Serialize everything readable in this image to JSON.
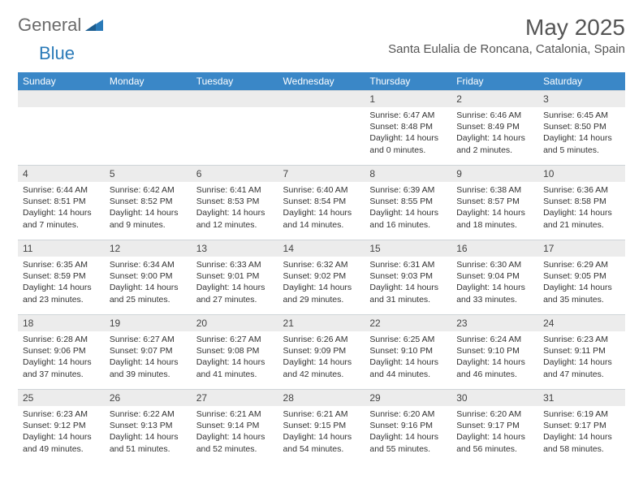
{
  "brand": {
    "part1": "General",
    "part2": "Blue"
  },
  "title": "May 2025",
  "location": "Santa Eulalia de Roncana, Catalonia, Spain",
  "colors": {
    "header_bg": "#3a87c7",
    "header_text": "#ffffff",
    "daynum_bg": "#ececec",
    "border": "#cfd4d8",
    "brand_gray": "#6b6b6b",
    "brand_blue": "#2a7ab8",
    "text": "#333333"
  },
  "weekdays": [
    "Sunday",
    "Monday",
    "Tuesday",
    "Wednesday",
    "Thursday",
    "Friday",
    "Saturday"
  ],
  "weeks": [
    [
      null,
      null,
      null,
      null,
      {
        "n": "1",
        "sr": "Sunrise: 6:47 AM",
        "ss": "Sunset: 8:48 PM",
        "dl": "Daylight: 14 hours and 0 minutes."
      },
      {
        "n": "2",
        "sr": "Sunrise: 6:46 AM",
        "ss": "Sunset: 8:49 PM",
        "dl": "Daylight: 14 hours and 2 minutes."
      },
      {
        "n": "3",
        "sr": "Sunrise: 6:45 AM",
        "ss": "Sunset: 8:50 PM",
        "dl": "Daylight: 14 hours and 5 minutes."
      }
    ],
    [
      {
        "n": "4",
        "sr": "Sunrise: 6:44 AM",
        "ss": "Sunset: 8:51 PM",
        "dl": "Daylight: 14 hours and 7 minutes."
      },
      {
        "n": "5",
        "sr": "Sunrise: 6:42 AM",
        "ss": "Sunset: 8:52 PM",
        "dl": "Daylight: 14 hours and 9 minutes."
      },
      {
        "n": "6",
        "sr": "Sunrise: 6:41 AM",
        "ss": "Sunset: 8:53 PM",
        "dl": "Daylight: 14 hours and 12 minutes."
      },
      {
        "n": "7",
        "sr": "Sunrise: 6:40 AM",
        "ss": "Sunset: 8:54 PM",
        "dl": "Daylight: 14 hours and 14 minutes."
      },
      {
        "n": "8",
        "sr": "Sunrise: 6:39 AM",
        "ss": "Sunset: 8:55 PM",
        "dl": "Daylight: 14 hours and 16 minutes."
      },
      {
        "n": "9",
        "sr": "Sunrise: 6:38 AM",
        "ss": "Sunset: 8:57 PM",
        "dl": "Daylight: 14 hours and 18 minutes."
      },
      {
        "n": "10",
        "sr": "Sunrise: 6:36 AM",
        "ss": "Sunset: 8:58 PM",
        "dl": "Daylight: 14 hours and 21 minutes."
      }
    ],
    [
      {
        "n": "11",
        "sr": "Sunrise: 6:35 AM",
        "ss": "Sunset: 8:59 PM",
        "dl": "Daylight: 14 hours and 23 minutes."
      },
      {
        "n": "12",
        "sr": "Sunrise: 6:34 AM",
        "ss": "Sunset: 9:00 PM",
        "dl": "Daylight: 14 hours and 25 minutes."
      },
      {
        "n": "13",
        "sr": "Sunrise: 6:33 AM",
        "ss": "Sunset: 9:01 PM",
        "dl": "Daylight: 14 hours and 27 minutes."
      },
      {
        "n": "14",
        "sr": "Sunrise: 6:32 AM",
        "ss": "Sunset: 9:02 PM",
        "dl": "Daylight: 14 hours and 29 minutes."
      },
      {
        "n": "15",
        "sr": "Sunrise: 6:31 AM",
        "ss": "Sunset: 9:03 PM",
        "dl": "Daylight: 14 hours and 31 minutes."
      },
      {
        "n": "16",
        "sr": "Sunrise: 6:30 AM",
        "ss": "Sunset: 9:04 PM",
        "dl": "Daylight: 14 hours and 33 minutes."
      },
      {
        "n": "17",
        "sr": "Sunrise: 6:29 AM",
        "ss": "Sunset: 9:05 PM",
        "dl": "Daylight: 14 hours and 35 minutes."
      }
    ],
    [
      {
        "n": "18",
        "sr": "Sunrise: 6:28 AM",
        "ss": "Sunset: 9:06 PM",
        "dl": "Daylight: 14 hours and 37 minutes."
      },
      {
        "n": "19",
        "sr": "Sunrise: 6:27 AM",
        "ss": "Sunset: 9:07 PM",
        "dl": "Daylight: 14 hours and 39 minutes."
      },
      {
        "n": "20",
        "sr": "Sunrise: 6:27 AM",
        "ss": "Sunset: 9:08 PM",
        "dl": "Daylight: 14 hours and 41 minutes."
      },
      {
        "n": "21",
        "sr": "Sunrise: 6:26 AM",
        "ss": "Sunset: 9:09 PM",
        "dl": "Daylight: 14 hours and 42 minutes."
      },
      {
        "n": "22",
        "sr": "Sunrise: 6:25 AM",
        "ss": "Sunset: 9:10 PM",
        "dl": "Daylight: 14 hours and 44 minutes."
      },
      {
        "n": "23",
        "sr": "Sunrise: 6:24 AM",
        "ss": "Sunset: 9:10 PM",
        "dl": "Daylight: 14 hours and 46 minutes."
      },
      {
        "n": "24",
        "sr": "Sunrise: 6:23 AM",
        "ss": "Sunset: 9:11 PM",
        "dl": "Daylight: 14 hours and 47 minutes."
      }
    ],
    [
      {
        "n": "25",
        "sr": "Sunrise: 6:23 AM",
        "ss": "Sunset: 9:12 PM",
        "dl": "Daylight: 14 hours and 49 minutes."
      },
      {
        "n": "26",
        "sr": "Sunrise: 6:22 AM",
        "ss": "Sunset: 9:13 PM",
        "dl": "Daylight: 14 hours and 51 minutes."
      },
      {
        "n": "27",
        "sr": "Sunrise: 6:21 AM",
        "ss": "Sunset: 9:14 PM",
        "dl": "Daylight: 14 hours and 52 minutes."
      },
      {
        "n": "28",
        "sr": "Sunrise: 6:21 AM",
        "ss": "Sunset: 9:15 PM",
        "dl": "Daylight: 14 hours and 54 minutes."
      },
      {
        "n": "29",
        "sr": "Sunrise: 6:20 AM",
        "ss": "Sunset: 9:16 PM",
        "dl": "Daylight: 14 hours and 55 minutes."
      },
      {
        "n": "30",
        "sr": "Sunrise: 6:20 AM",
        "ss": "Sunset: 9:17 PM",
        "dl": "Daylight: 14 hours and 56 minutes."
      },
      {
        "n": "31",
        "sr": "Sunrise: 6:19 AM",
        "ss": "Sunset: 9:17 PM",
        "dl": "Daylight: 14 hours and 58 minutes."
      }
    ]
  ]
}
